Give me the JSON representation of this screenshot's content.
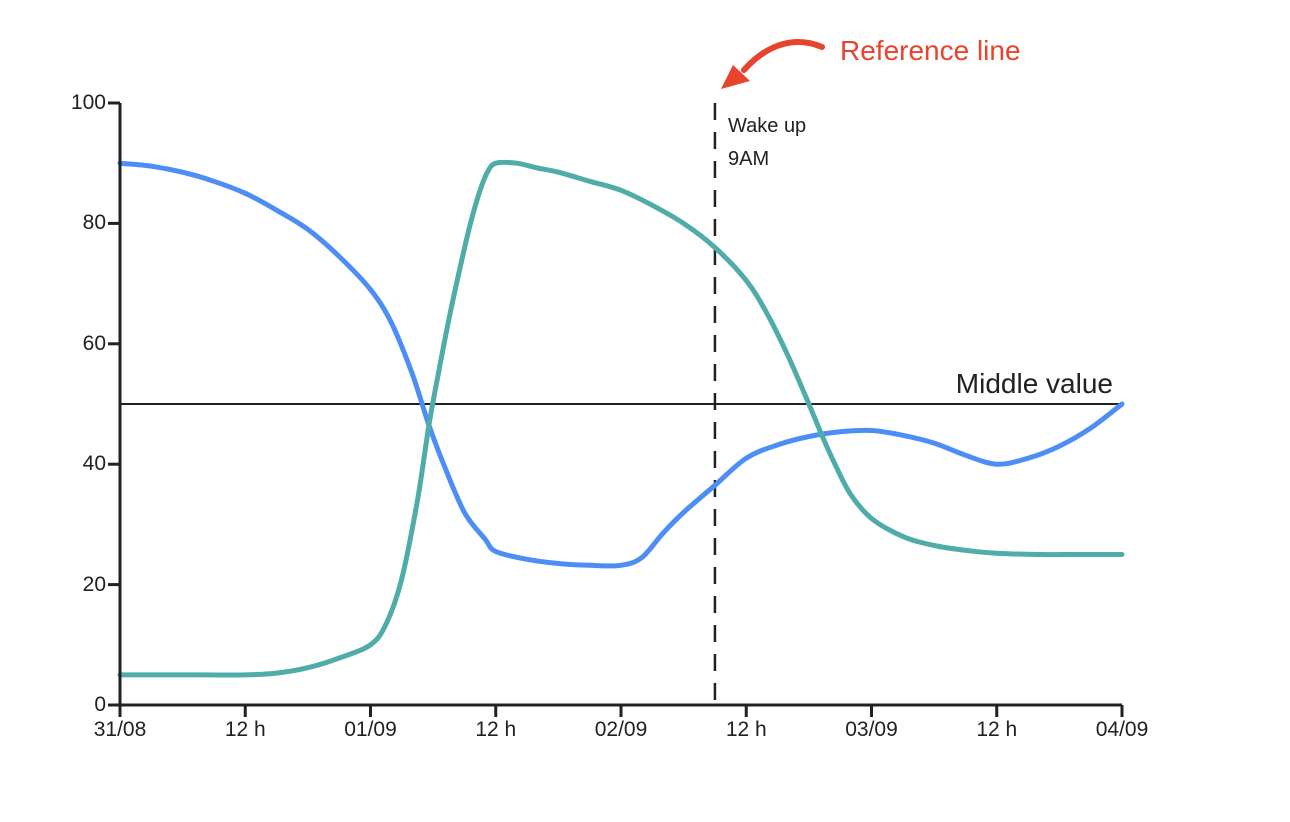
{
  "chart_data": {
    "type": "line",
    "title": "",
    "xlabel": "",
    "ylabel": "",
    "grid": false,
    "legend": null,
    "x_axis": {
      "tick_labels": [
        "31/08",
        "12 h",
        "01/09",
        "12 h",
        "02/09",
        "12 h",
        "03/09",
        "12 h",
        "04/09"
      ],
      "tick_hours": [
        0,
        12,
        24,
        36,
        48,
        60,
        72,
        84,
        96
      ],
      "range_hours": [
        0,
        96
      ]
    },
    "y_axis": {
      "tick_labels": [
        "0",
        "20",
        "40",
        "60",
        "80",
        "100"
      ],
      "ticks": [
        0,
        20,
        40,
        60,
        80,
        100
      ],
      "range": [
        0,
        100
      ]
    },
    "series": [
      {
        "name": "blue-series",
        "color": "#4D8EF6",
        "points": [
          [
            0,
            90
          ],
          [
            3,
            89.5
          ],
          [
            6,
            88.5
          ],
          [
            9,
            87
          ],
          [
            12,
            85
          ],
          [
            15,
            82.2
          ],
          [
            18,
            79
          ],
          [
            21,
            74.5
          ],
          [
            24,
            69
          ],
          [
            26,
            63.5
          ],
          [
            28,
            55
          ],
          [
            29.6,
            46.5
          ],
          [
            31,
            40
          ],
          [
            33,
            32
          ],
          [
            35,
            27.5
          ],
          [
            36,
            25.5
          ],
          [
            39,
            24.2
          ],
          [
            42,
            23.5
          ],
          [
            45,
            23.2
          ],
          [
            48,
            23.2
          ],
          [
            50,
            24.5
          ],
          [
            52,
            28.5
          ],
          [
            54,
            32
          ],
          [
            57,
            36.5
          ],
          [
            60,
            41
          ],
          [
            63,
            43.2
          ],
          [
            66,
            44.6
          ],
          [
            69,
            45.4
          ],
          [
            72,
            45.6
          ],
          [
            75,
            44.8
          ],
          [
            78,
            43.5
          ],
          [
            81,
            41.5
          ],
          [
            84,
            40
          ],
          [
            87,
            41
          ],
          [
            90,
            43
          ],
          [
            93,
            46
          ],
          [
            96,
            50
          ]
        ]
      },
      {
        "name": "teal-series",
        "color": "#4FACA8",
        "points": [
          [
            0,
            5
          ],
          [
            4,
            5
          ],
          [
            8,
            5
          ],
          [
            12,
            5
          ],
          [
            15,
            5.3
          ],
          [
            18,
            6.2
          ],
          [
            21,
            7.8
          ],
          [
            24,
            10
          ],
          [
            25.5,
            13.5
          ],
          [
            27,
            21
          ],
          [
            28.5,
            34
          ],
          [
            29.6,
            46.5
          ],
          [
            30.5,
            55
          ],
          [
            31.5,
            64
          ],
          [
            32.5,
            72
          ],
          [
            33.5,
            79.5
          ],
          [
            34.5,
            85.5
          ],
          [
            35.2,
            88.5
          ],
          [
            36,
            90
          ],
          [
            38,
            90
          ],
          [
            40,
            89.2
          ],
          [
            42,
            88.5
          ],
          [
            45,
            87
          ],
          [
            48,
            85.5
          ],
          [
            51,
            83
          ],
          [
            54,
            80
          ],
          [
            57,
            76
          ],
          [
            60,
            70.5
          ],
          [
            62,
            65
          ],
          [
            64,
            58
          ],
          [
            66,
            50
          ],
          [
            67.2,
            45
          ],
          [
            68.5,
            40
          ],
          [
            70,
            35
          ],
          [
            72,
            31
          ],
          [
            75,
            28
          ],
          [
            78,
            26.5
          ],
          [
            81,
            25.7
          ],
          [
            84,
            25.2
          ],
          [
            88,
            25
          ],
          [
            92,
            25
          ],
          [
            96,
            25
          ]
        ]
      }
    ],
    "reference_lines": {
      "horizontal": {
        "value": 50,
        "label": "Middle value"
      },
      "vertical": {
        "hour": 57,
        "label_line1": "Wake up",
        "label_line2": "9AM",
        "style": "dashed"
      }
    },
    "annotation": {
      "label": "Reference line",
      "color": "#E8432C"
    }
  },
  "colors": {
    "background": "#ffffff",
    "axis": "#212121",
    "text": "#212121",
    "blue_series": "#4D8EF6",
    "teal_series": "#4FACA8",
    "annotation_red": "#E8432C"
  }
}
